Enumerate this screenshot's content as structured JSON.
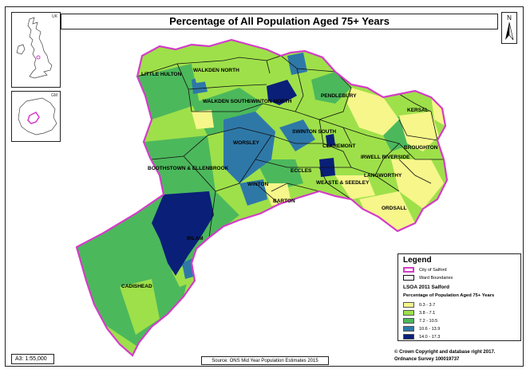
{
  "title": "Percentage of All Population Aged 75+ Years",
  "north_letter": "N",
  "insets": {
    "uk_label": "UK",
    "gm_label": "GM"
  },
  "wards": [
    {
      "name": "LITTLE HULTON"
    },
    {
      "name": "WALKDEN NORTH"
    },
    {
      "name": "WALKDEN SOUTH"
    },
    {
      "name": "SWINTON NORTH"
    },
    {
      "name": "PENDLEBURY"
    },
    {
      "name": "KERSAL"
    },
    {
      "name": "SWINTON SOUTH"
    },
    {
      "name": "CLAREMONT"
    },
    {
      "name": "BROUGHTON"
    },
    {
      "name": "IRWELL RIVERSIDE"
    },
    {
      "name": "WORSLEY"
    },
    {
      "name": "BOOTHSTOWN & ELLENBROOK"
    },
    {
      "name": "ECCLES"
    },
    {
      "name": "WEASTE & SEEDLEY"
    },
    {
      "name": "LANGWORTHY"
    },
    {
      "name": "WINTON"
    },
    {
      "name": "BARTON"
    },
    {
      "name": "ORDSALL"
    },
    {
      "name": "IRLAM"
    },
    {
      "name": "CADISHEAD"
    }
  ],
  "legend": {
    "title": "Legend",
    "city_label": "City of Salford",
    "ward_label": "Ward Boundaries",
    "lsoa_label": "LSOA 2011 Salford",
    "measure_label": "Percentage of Population Aged 75+ Years",
    "classes": [
      {
        "range": "0.3 - 3.7",
        "color": "#f6f68a"
      },
      {
        "range": "3.8 - 7.1",
        "color": "#9ee04a"
      },
      {
        "range": "7.2 - 10.5",
        "color": "#4cb85c"
      },
      {
        "range": "10.6 - 13.9",
        "color": "#2e78a8"
      },
      {
        "range": "14.0 - 17.3",
        "color": "#0a1f78"
      }
    ],
    "city_color": "#d43cc8"
  },
  "scale": "A3:  1:55,000",
  "source": "Source: ONS Mid Year Population Estimates 2015",
  "copyright_line1": "© Crown Copyright and database right 2017.",
  "copyright_line2": "Ordnance Survey 100019737"
}
